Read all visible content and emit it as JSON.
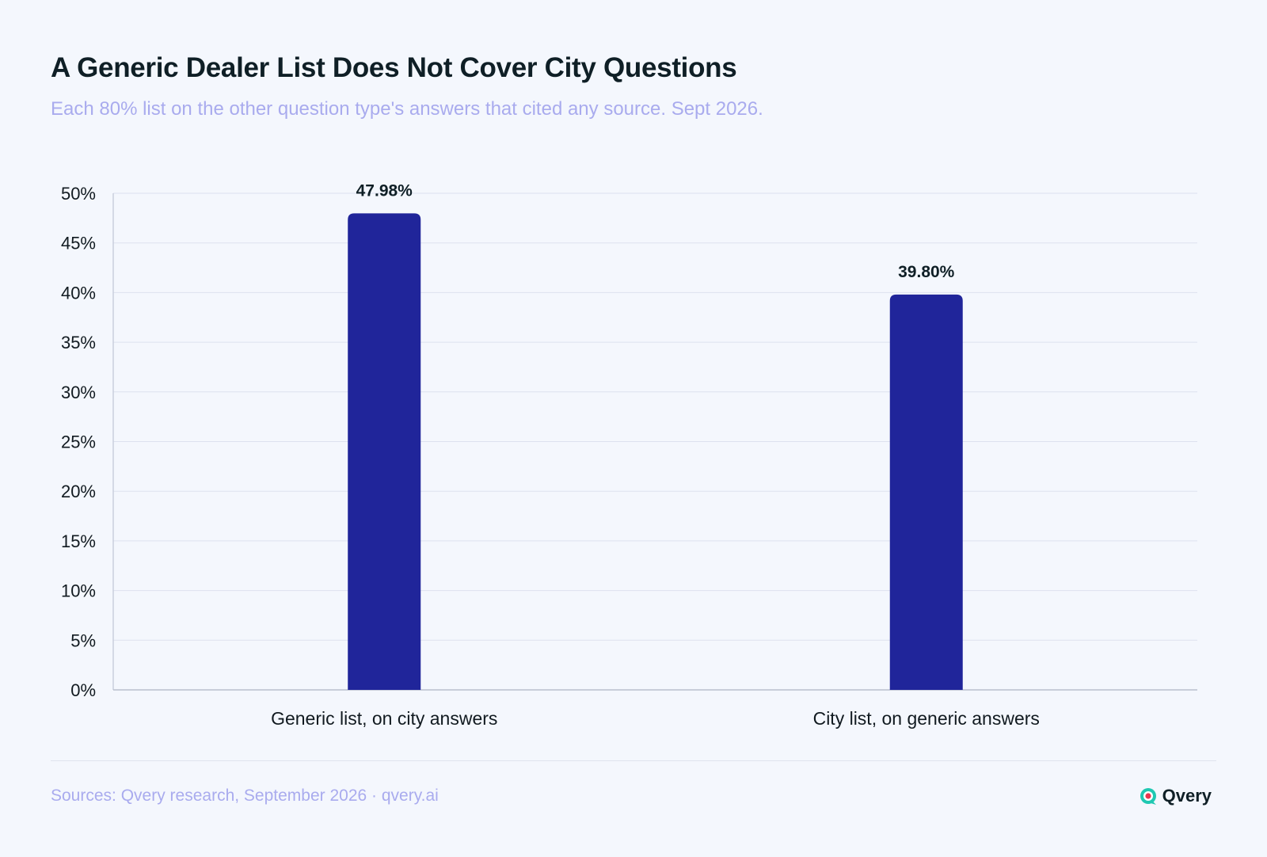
{
  "chart_data": {
    "type": "bar",
    "title": "A Generic Dealer List Does Not Cover City Questions",
    "subtitle": "Each 80% list on the other question type's answers that cited any source. Sept 2026.",
    "categories": [
      "Generic list, on city answers",
      "City list, on generic answers"
    ],
    "values": [
      47.98,
      39.8
    ],
    "value_labels": [
      "47.98%",
      "39.80%"
    ],
    "ylim": [
      0,
      50
    ],
    "yticks": [
      0,
      5,
      10,
      15,
      20,
      25,
      30,
      35,
      40,
      45,
      50
    ],
    "ytick_labels": [
      "0%",
      "5%",
      "10%",
      "15%",
      "20%",
      "25%",
      "30%",
      "35%",
      "40%",
      "45%",
      "50%"
    ],
    "xlabel": "",
    "ylabel": "",
    "grid": true,
    "bar_color": "#20259a"
  },
  "footer": {
    "source": "Sources: Qvery research, September 2026 · qvery.ai",
    "brand": "Qvery"
  },
  "colors": {
    "logo_teal": "#1fc8b2",
    "logo_red": "#e8344e"
  }
}
